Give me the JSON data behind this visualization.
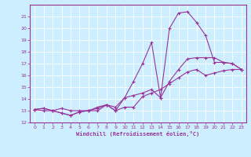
{
  "xlabel": "Windchill (Refroidissement éolien,°C)",
  "background_color": "#cceeff",
  "line_color": "#993399",
  "grid_color": "#ffffff",
  "xlim": [
    -0.5,
    23.5
  ],
  "ylim": [
    12,
    22
  ],
  "yticks": [
    12,
    13,
    14,
    15,
    16,
    17,
    18,
    19,
    20,
    21
  ],
  "xticks": [
    0,
    1,
    2,
    3,
    4,
    5,
    6,
    7,
    8,
    9,
    10,
    11,
    12,
    13,
    14,
    15,
    16,
    17,
    18,
    19,
    20,
    21,
    22,
    23
  ],
  "series1": [
    [
      0,
      13.1
    ],
    [
      1,
      13.2
    ],
    [
      2,
      13.0
    ],
    [
      3,
      12.8
    ],
    [
      4,
      12.6
    ],
    [
      5,
      12.9
    ],
    [
      6,
      13.0
    ],
    [
      7,
      13.2
    ],
    [
      8,
      13.5
    ],
    [
      9,
      13.0
    ],
    [
      10,
      14.1
    ],
    [
      11,
      15.5
    ],
    [
      12,
      17.0
    ],
    [
      13,
      18.8
    ],
    [
      14,
      14.1
    ],
    [
      15,
      20.0
    ],
    [
      16,
      21.3
    ],
    [
      17,
      21.4
    ],
    [
      18,
      20.5
    ],
    [
      19,
      19.4
    ],
    [
      20,
      17.1
    ],
    [
      21,
      17.1
    ],
    [
      22,
      17.0
    ],
    [
      23,
      16.5
    ]
  ],
  "series2": [
    [
      0,
      13.1
    ],
    [
      1,
      13.2
    ],
    [
      2,
      13.0
    ],
    [
      3,
      13.2
    ],
    [
      4,
      13.0
    ],
    [
      5,
      13.0
    ],
    [
      6,
      13.0
    ],
    [
      7,
      13.3
    ],
    [
      8,
      13.5
    ],
    [
      9,
      13.0
    ],
    [
      10,
      13.3
    ],
    [
      11,
      13.3
    ],
    [
      12,
      14.2
    ],
    [
      13,
      14.5
    ],
    [
      14,
      14.8
    ],
    [
      15,
      15.3
    ],
    [
      16,
      15.8
    ],
    [
      17,
      16.3
    ],
    [
      18,
      16.5
    ],
    [
      19,
      16.0
    ],
    [
      20,
      16.2
    ],
    [
      21,
      16.4
    ],
    [
      22,
      16.5
    ],
    [
      23,
      16.5
    ]
  ],
  "series3": [
    [
      0,
      13.1
    ],
    [
      1,
      13.0
    ],
    [
      2,
      13.0
    ],
    [
      3,
      12.8
    ],
    [
      4,
      12.6
    ],
    [
      5,
      12.9
    ],
    [
      6,
      13.0
    ],
    [
      7,
      13.0
    ],
    [
      8,
      13.5
    ],
    [
      9,
      13.3
    ],
    [
      10,
      14.1
    ],
    [
      11,
      14.3
    ],
    [
      12,
      14.5
    ],
    [
      13,
      14.8
    ],
    [
      14,
      14.1
    ],
    [
      15,
      15.5
    ],
    [
      16,
      16.5
    ],
    [
      17,
      17.4
    ],
    [
      18,
      17.5
    ],
    [
      19,
      17.5
    ],
    [
      20,
      17.5
    ],
    [
      21,
      17.1
    ],
    [
      22,
      17.0
    ],
    [
      23,
      16.5
    ]
  ]
}
